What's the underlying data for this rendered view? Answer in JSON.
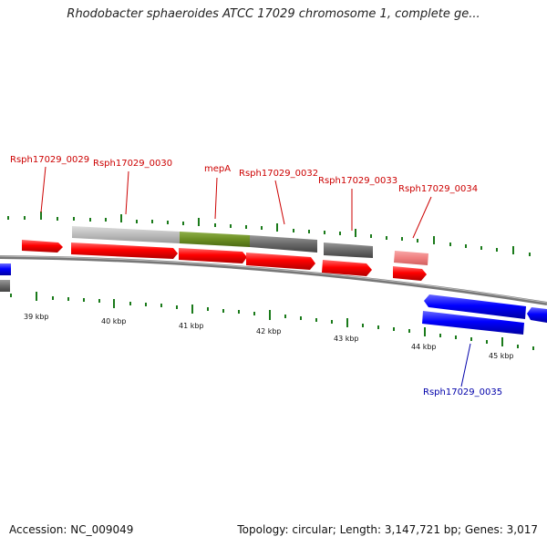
{
  "title": "Rhodobacter sphaeroides ATCC 17029 chromosome 1, complete ge...",
  "footer": {
    "accession": "Accession: NC_009049",
    "summary": "Topology: circular; Length: 3,147,721 bp; Genes: 3,017"
  },
  "colors": {
    "forward_gene": "#ff0000",
    "reverse_gene": "#0000ff",
    "label_forward": "#cc0000",
    "label_reverse": "#0000aa",
    "tick": "#1a7a1a",
    "backbone": "#777777",
    "feature_gray": "#6a6a6a",
    "feature_light_gray": "#bbbbbb",
    "feature_green": "#6b8e23",
    "feature_pink": "#f08080"
  },
  "scale_labels": [
    "39 kbp",
    "40 kbp",
    "41 kbp",
    "42 kbp",
    "43 kbp",
    "44 kbp",
    "45 kbp"
  ],
  "gene_labels": [
    {
      "text": "Rsph17029_0029",
      "strand": "forward"
    },
    {
      "text": "Rsph17029_0030",
      "strand": "forward"
    },
    {
      "text": "mepA",
      "strand": "forward"
    },
    {
      "text": "Rsph17029_0032",
      "strand": "forward"
    },
    {
      "text": "Rsph17029_0033",
      "strand": "forward"
    },
    {
      "text": "Rsph17029_0034",
      "strand": "forward"
    },
    {
      "text": "Rsph17029_0035",
      "strand": "reverse"
    }
  ]
}
